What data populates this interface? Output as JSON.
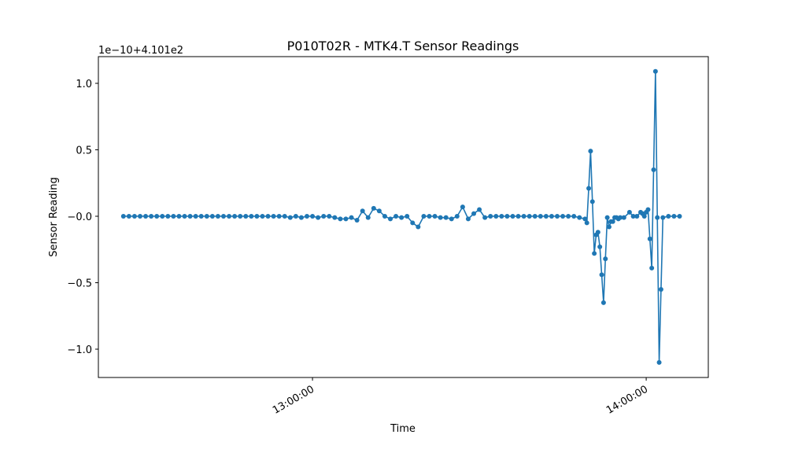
{
  "chart_data": {
    "type": "line",
    "title": "P010T02R - MTK4.T Sensor Readings",
    "x_label": "Time",
    "y_label": "Sensor Reading",
    "y_offset_label": "1e−10+4.101e2",
    "xlim": [
      "12:21:30",
      "14:11:10"
    ],
    "xticks": [
      "13:00:00",
      "14:00:00"
    ],
    "ylim": [
      -1.213,
      1.201
    ],
    "yticks": [
      {
        "value": -1,
        "label": "−1.0"
      },
      {
        "value": -0.5,
        "label": "−0.5"
      },
      {
        "value": 0,
        "label": "−0.0"
      },
      0.5,
      {
        "value": 1,
        "label": "1.0"
      }
    ],
    "x": [
      "12:26:00",
      "12:27:00",
      "12:28:00",
      "12:29:00",
      "12:30:00",
      "12:31:00",
      "12:32:00",
      "12:33:00",
      "12:34:00",
      "12:35:00",
      "12:36:00",
      "12:37:00",
      "12:38:00",
      "12:39:00",
      "12:40:00",
      "12:41:00",
      "12:42:00",
      "12:43:00",
      "12:44:00",
      "12:45:00",
      "12:46:00",
      "12:47:00",
      "12:48:00",
      "12:49:00",
      "12:50:00",
      "12:51:00",
      "12:52:00",
      "12:53:00",
      "12:54:00",
      "12:55:00",
      "12:56:00",
      "12:57:00",
      "12:58:00",
      "12:59:00",
      "13:00:00",
      "13:01:00",
      "13:02:00",
      "13:03:00",
      "13:04:00",
      "13:05:00",
      "13:06:00",
      "13:07:00",
      "13:08:00",
      "13:09:00",
      "13:10:00",
      "13:11:00",
      "13:12:00",
      "13:13:00",
      "13:14:00",
      "13:15:00",
      "13:16:00",
      "13:17:00",
      "13:18:00",
      "13:19:00",
      "13:20:00",
      "13:21:00",
      "13:22:00",
      "13:23:00",
      "13:24:00",
      "13:25:00",
      "13:26:00",
      "13:27:00",
      "13:28:00",
      "13:29:00",
      "13:30:00",
      "13:31:00",
      "13:32:00",
      "13:33:00",
      "13:34:00",
      "13:35:00",
      "13:36:00",
      "13:37:00",
      "13:38:00",
      "13:39:00",
      "13:40:00",
      "13:41:00",
      "13:42:00",
      "13:43:00",
      "13:44:00",
      "13:45:00",
      "13:46:00",
      "13:47:00",
      "13:48:00",
      "13:49:00",
      "13:49:20",
      "13:49:40",
      "13:50:00",
      "13:50:20",
      "13:50:40",
      "13:51:00",
      "13:51:20",
      "13:51:40",
      "13:52:00",
      "13:52:20",
      "13:52:40",
      "13:53:00",
      "13:53:20",
      "13:53:40",
      "13:54:00",
      "13:54:20",
      "13:54:40",
      "13:55:00",
      "13:55:20",
      "13:56:00",
      "13:57:00",
      "13:57:40",
      "13:58:20",
      "13:59:00",
      "13:59:20",
      "13:59:40",
      "14:00:00",
      "14:00:20",
      "14:00:40",
      "14:01:00",
      "14:01:20",
      "14:01:40",
      "14:02:00",
      "14:02:20",
      "14:02:40",
      "14:03:00",
      "14:04:00",
      "14:05:00",
      "14:06:00"
    ],
    "series": [
      {
        "color": "#1f77b4",
        "values": [
          0,
          0,
          0,
          0,
          0,
          0,
          0,
          0,
          0,
          0,
          0,
          0,
          0,
          0,
          0,
          0,
          0,
          0,
          0,
          0,
          0,
          0,
          0,
          0,
          0,
          0,
          0,
          0,
          0,
          0,
          -0.01,
          0,
          -0.01,
          0,
          0,
          -0.01,
          0,
          0,
          -0.01,
          -0.02,
          -0.02,
          -0.01,
          -0.03,
          0.04,
          -0.01,
          0.06,
          0.04,
          0,
          -0.02,
          0,
          -0.01,
          0,
          -0.05,
          -0.08,
          0,
          0,
          0,
          -0.01,
          -0.01,
          -0.02,
          0,
          0.07,
          -0.02,
          0.02,
          0.05,
          -0.01,
          0,
          0,
          0,
          0,
          0,
          0,
          0,
          0,
          0,
          0,
          0,
          0,
          0,
          0,
          0,
          0,
          -0.01,
          -0.02,
          -0.05,
          0.21,
          0.49,
          0.11,
          -0.28,
          -0.14,
          -0.12,
          -0.23,
          -0.44,
          -0.65,
          -0.32,
          -0.01,
          -0.08,
          -0.04,
          -0.04,
          -0.01,
          -0.01,
          -0.02,
          -0.01,
          -0.01,
          0.03,
          0,
          0,
          0.03,
          0.02,
          0,
          0.03,
          0.05,
          -0.17,
          -0.39,
          0.35,
          1.09,
          -0.01,
          -1.1,
          -0.55,
          -0.01,
          0,
          0,
          0
        ]
      }
    ]
  }
}
